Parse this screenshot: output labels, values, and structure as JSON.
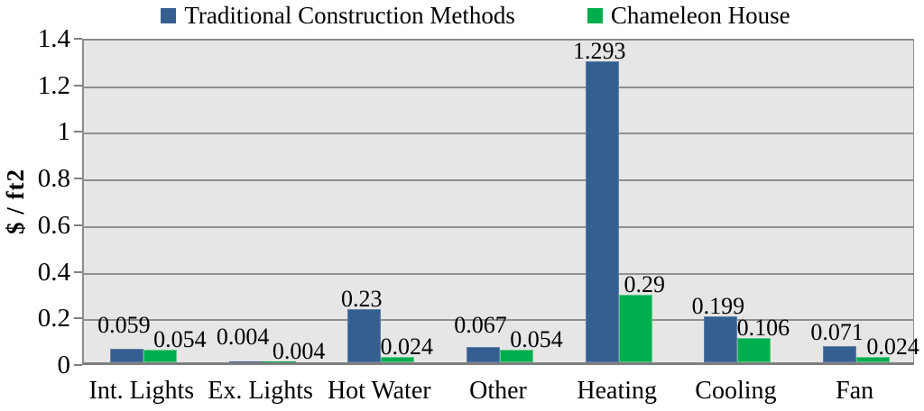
{
  "chart_data": {
    "type": "bar",
    "title": "",
    "ylabel": "$ / ft2",
    "categories": [
      "Int. Lights",
      "Ex. Lights",
      "Hot Water",
      "Other",
      "Heating",
      "Cooling",
      "Fan"
    ],
    "series": [
      {
        "name": "Traditional Construction Methods",
        "color": "#365F91",
        "values": [
          0.059,
          0.004,
          0.23,
          0.067,
          1.293,
          0.199,
          0.071
        ],
        "labels": [
          "0.059",
          "0.004",
          "0.23",
          "0.067",
          "1.293",
          "0.199",
          "0.071"
        ]
      },
      {
        "name": "Chameleon House",
        "color": "#00AE4E",
        "values": [
          0.054,
          0.004,
          0.024,
          0.054,
          0.29,
          0.106,
          0.024
        ],
        "labels": [
          "0.054",
          "0.004",
          "0.024",
          "0.054",
          "0.29",
          "0.106",
          "0.024"
        ]
      }
    ],
    "ylim": [
      0,
      1.4
    ],
    "ytick_step": 0.2,
    "ytick_labels": [
      "0",
      "0.2",
      "0.4",
      "0.6",
      "0.8",
      "1",
      "1.2",
      "1.4"
    ],
    "legend_position": "top",
    "grid": true,
    "colors": {
      "plot_bg": "#E6E6E6",
      "gridline": "#8F8F8F",
      "axis": "#7F7F7F",
      "text": "#000000"
    }
  }
}
